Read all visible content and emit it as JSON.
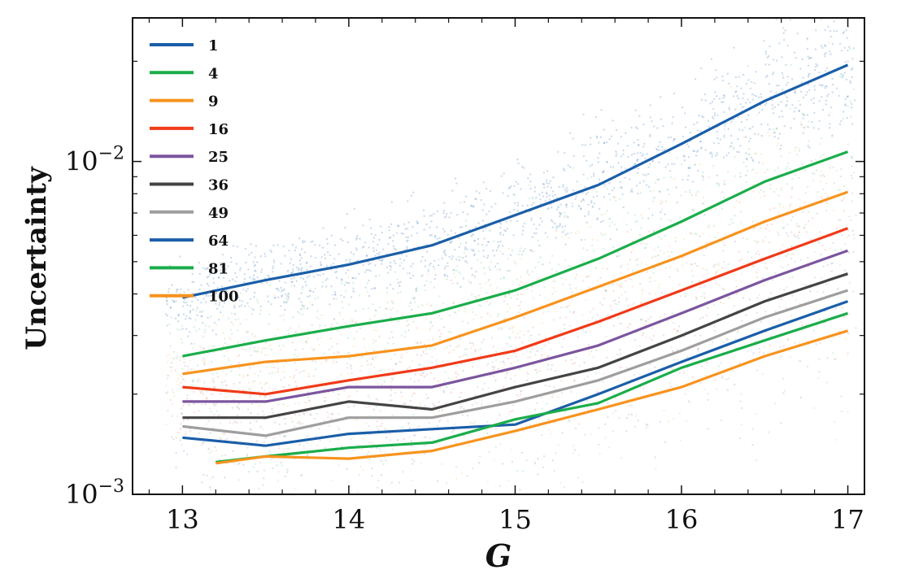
{
  "chart_data": {
    "type": "line",
    "xlabel": "G",
    "ylabel": "Uncertainty",
    "xlim": [
      12.7,
      17.1
    ],
    "ylim": [
      0.001,
      0.027
    ],
    "yscale": "log",
    "x_ticks": [
      "13",
      "14",
      "15",
      "16",
      "17"
    ],
    "y_ticks": [
      {
        "value": 0.001,
        "base": "10",
        "exp": "−3"
      },
      {
        "value": 0.01,
        "base": "10",
        "exp": "−2"
      }
    ],
    "legend": "upper-left",
    "grid": false,
    "background_scatter": true,
    "series": [
      {
        "name": "1",
        "color": "#1a5ea8",
        "x": [
          13.0,
          13.5,
          14.0,
          14.5,
          15.0,
          15.5,
          16.0,
          16.5,
          17.0
        ],
        "y": [
          0.0039,
          0.0044,
          0.0049,
          0.0056,
          0.0069,
          0.0085,
          0.0113,
          0.0152,
          0.0195
        ]
      },
      {
        "name": "4",
        "color": "#1aad4a",
        "x": [
          13.0,
          13.5,
          14.0,
          14.5,
          15.0,
          15.5,
          16.0,
          16.5,
          17.0
        ],
        "y": [
          0.0026,
          0.0029,
          0.0032,
          0.0035,
          0.0041,
          0.0051,
          0.0066,
          0.0087,
          0.0107
        ]
      },
      {
        "name": "9",
        "color": "#f7931e",
        "x": [
          13.0,
          13.5,
          14.0,
          14.5,
          15.0,
          15.5,
          16.0,
          16.5,
          17.0
        ],
        "y": [
          0.0023,
          0.0025,
          0.0026,
          0.0028,
          0.0034,
          0.0042,
          0.0052,
          0.0066,
          0.0081
        ]
      },
      {
        "name": "16",
        "color": "#f03a18",
        "x": [
          13.0,
          13.5,
          14.0,
          14.5,
          15.0,
          15.5,
          16.0,
          16.5,
          17.0
        ],
        "y": [
          0.0021,
          0.002,
          0.0022,
          0.0024,
          0.0027,
          0.0033,
          0.0041,
          0.0051,
          0.0063
        ]
      },
      {
        "name": "25",
        "color": "#7b559e",
        "x": [
          13.0,
          13.5,
          14.0,
          14.5,
          15.0,
          15.5,
          16.0,
          16.5,
          17.0
        ],
        "y": [
          0.0019,
          0.0019,
          0.0021,
          0.0021,
          0.0024,
          0.0028,
          0.0035,
          0.0044,
          0.0054
        ]
      },
      {
        "name": "36",
        "color": "#444444",
        "x": [
          13.0,
          13.5,
          14.0,
          14.5,
          15.0,
          15.5,
          16.0,
          16.5,
          17.0
        ],
        "y": [
          0.0017,
          0.0017,
          0.0019,
          0.0018,
          0.0021,
          0.0024,
          0.003,
          0.0038,
          0.0046
        ]
      },
      {
        "name": "49",
        "color": "#9e9e9e",
        "x": [
          13.0,
          13.5,
          14.0,
          14.5,
          15.0,
          15.5,
          16.0,
          16.5,
          17.0
        ],
        "y": [
          0.0016,
          0.0015,
          0.0017,
          0.0017,
          0.0019,
          0.0022,
          0.0027,
          0.0034,
          0.0041
        ]
      },
      {
        "name": "64",
        "color": "#1a5ea8",
        "x": [
          13.0,
          13.5,
          14.0,
          14.5,
          15.0,
          15.5,
          16.0,
          16.5,
          17.0
        ],
        "y": [
          0.00148,
          0.0014,
          0.00152,
          0.00157,
          0.00162,
          0.002,
          0.0025,
          0.0031,
          0.0038
        ]
      },
      {
        "name": "81",
        "color": "#1aad4a",
        "x": [
          13.2,
          13.5,
          14.0,
          14.5,
          15.0,
          15.5,
          16.0,
          16.5,
          17.0
        ],
        "y": [
          0.00125,
          0.0013,
          0.00138,
          0.00143,
          0.00168,
          0.00188,
          0.0024,
          0.0029,
          0.0035
        ]
      },
      {
        "name": "100",
        "color": "#f7931e",
        "x": [
          13.2,
          13.5,
          14.0,
          14.5,
          15.0,
          15.5,
          16.0,
          16.5,
          17.0
        ],
        "y": [
          0.00124,
          0.0013,
          0.00128,
          0.00135,
          0.00155,
          0.0018,
          0.0021,
          0.0026,
          0.0031
        ]
      }
    ]
  }
}
